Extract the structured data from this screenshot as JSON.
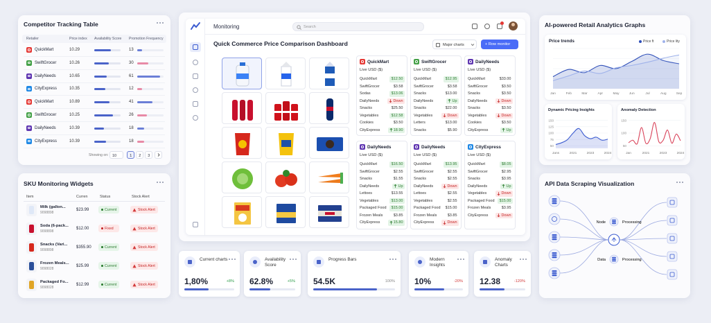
{
  "competitor": {
    "title": "Competitor Tracking Table",
    "columns": [
      "Retailer",
      "Price index",
      "Availability Score",
      "Promotion Frequency"
    ],
    "rows": [
      {
        "retailer": "QuickMart",
        "color": "#e53935",
        "price": "10.29",
        "availability": 62,
        "promo": 13
      },
      {
        "retailer": "SwiftGrocer",
        "color": "#43a047",
        "price": "10.26",
        "availability": 55,
        "promo": 30
      },
      {
        "retailer": "DailyNeeds",
        "color": "#5e35b1",
        "price": "10.65",
        "availability": 48,
        "promo": 61
      },
      {
        "retailer": "CityExpress",
        "color": "#1e88e5",
        "price": "10.35",
        "availability": 42,
        "promo": 12
      },
      {
        "retailer": "QuickMart",
        "color": "#e53935",
        "price": "10.89",
        "availability": 58,
        "promo": 41
      },
      {
        "retailer": "SwiftGrocer",
        "color": "#43a047",
        "price": "10.25",
        "availability": 70,
        "promo": 26
      },
      {
        "retailer": "DailyNeeds",
        "color": "#5e35b1",
        "price": "10.39",
        "availability": 38,
        "promo": 18
      },
      {
        "retailer": "CityExpress",
        "color": "#1e88e5",
        "price": "10.39",
        "availability": 44,
        "promo": 18
      }
    ],
    "showing": "Showing on:",
    "per_page": "10",
    "pages": [
      "1",
      "2",
      "3"
    ]
  },
  "sku": {
    "title": "SKU Monitoring Widgets",
    "columns": [
      "Item",
      "Curren",
      "Status",
      "Stock Alert"
    ],
    "rows": [
      {
        "item": "Milk (gallon...",
        "sku": "9098898",
        "price": "$23.99",
        "status": "Current",
        "tone": "ok",
        "alert": "Stock Alert",
        "thumb": "#dfe8f7"
      },
      {
        "item": "Soda (6-pack...",
        "sku": "9098898",
        "price": "$12.00",
        "status": "Fixed",
        "tone": "bad",
        "alert": "Stock Alert",
        "thumb": "#c8102e"
      },
      {
        "item": "Snacks (Vari...",
        "sku": "9098898",
        "price": "$355.90",
        "status": "Current",
        "tone": "ok",
        "alert": "Stock Alert",
        "thumb": "#d6281c"
      },
      {
        "item": "Frozen Meals...",
        "sku": "9098028",
        "price": "$25.99",
        "status": "Current",
        "tone": "ok",
        "alert": "Stock Alert",
        "thumb": "#2a4f9a"
      },
      {
        "item": "Packaged Fo...",
        "sku": "9098028",
        "price": "$12.99",
        "status": "Current",
        "tone": "ok",
        "alert": "Stock Alert",
        "thumb": "#e0a526"
      }
    ]
  },
  "dashboard": {
    "nav_title": "Monitoring",
    "search": "Search",
    "title": "Quick Commerce Price Comparison Dashboard",
    "dropdown": "Major charts",
    "button": "+ Row monitor",
    "stores": [
      {
        "name": "QuickMart",
        "color": "#e53935",
        "unit": "Live USD ($)",
        "rows": [
          [
            "QuickMart",
            "$12.50",
            "pos"
          ],
          [
            "SwiftGrocer",
            "$3.58",
            "plain"
          ],
          [
            "Sodas",
            "$13.06",
            "pos"
          ],
          [
            "DailyNeeds",
            "Down",
            "down"
          ],
          [
            "Snacks",
            "$25.50",
            "plain"
          ],
          [
            "Vegetables",
            "$12.58",
            "pos"
          ],
          [
            "Cookies",
            "$3.50",
            "plain"
          ],
          [
            "CityExpress",
            "18.90",
            "up"
          ]
        ]
      },
      {
        "name": "SwiftGrocer",
        "color": "#43a047",
        "unit": "Live USD ($)",
        "rows": [
          [
            "QuickMart",
            "$12.95",
            "pos"
          ],
          [
            "SwiftGrocer",
            "$3.58",
            "plain"
          ],
          [
            "Snacks",
            "$13.00",
            "plain"
          ],
          [
            "DailyNeeds",
            "Up",
            "up"
          ],
          [
            "Snacks",
            "$22.00",
            "plain"
          ],
          [
            "Vegetables",
            "Down",
            "down"
          ],
          [
            "Letters",
            "$13.00",
            "plain"
          ],
          [
            "Snacks",
            "$5.90",
            "plain"
          ]
        ]
      },
      {
        "name": "DailyNeeds",
        "color": "#5e35b1",
        "unit": "Live USD ($)",
        "rows": [
          [
            "QuickMart",
            "$33.00",
            "plain"
          ],
          [
            "SwiftGrocer",
            "$3.50",
            "plain"
          ],
          [
            "Snacks",
            "$3.50",
            "plain"
          ],
          [
            "DailyNeeds",
            "Down",
            "down"
          ],
          [
            "Snacks",
            "$3.50",
            "plain"
          ],
          [
            "Vegetables",
            "Down",
            "down"
          ],
          [
            "Cookies",
            "$3.50",
            "plain"
          ],
          [
            "CityExpress",
            "Up",
            "up"
          ]
        ]
      },
      {
        "name": "DailyNeeds",
        "color": "#5e35b1",
        "unit": "Live USD ($)",
        "rows": [
          [
            "QuickMart",
            "$16.50",
            "pos"
          ],
          [
            "SwiftGrocer",
            "$2.55",
            "plain"
          ],
          [
            "Snacks",
            "$1.55",
            "plain"
          ],
          [
            "DailyNeeds",
            "Up",
            "up"
          ],
          [
            "Lettoes",
            "$13.55",
            "plain"
          ],
          [
            "Vegetables",
            "$13.00",
            "pos"
          ],
          [
            "Packaged Food",
            "$15.00",
            "pos"
          ],
          [
            "Frozen Meals",
            "$3.85",
            "plain"
          ],
          [
            "CityExpress",
            "15.80",
            "up"
          ]
        ]
      },
      {
        "name": "DailyNeeds",
        "color": "#5e35b1",
        "unit": "Live USD ($)",
        "rows": [
          [
            "QuickMart",
            "$13.95",
            "pos"
          ],
          [
            "SwiftGrocer",
            "$2.55",
            "plain"
          ],
          [
            "Snacks",
            "$2.55",
            "plain"
          ],
          [
            "DailyNeeds",
            "Down",
            "down"
          ],
          [
            "Lettoes",
            "$2.55",
            "plain"
          ],
          [
            "Vegetables",
            "$2.55",
            "plain"
          ],
          [
            "Packaged Food",
            "$15.00",
            "plain"
          ],
          [
            "Frozen Meals",
            "$3.85",
            "plain"
          ],
          [
            "CityExpress",
            "Down",
            "down"
          ]
        ]
      },
      {
        "name": "CityExpress",
        "color": "#1e88e5",
        "unit": "Live USD ($)",
        "rows": [
          [
            "QuickMart",
            "$8.05",
            "pos"
          ],
          [
            "SwiftGrocer",
            "$2.95",
            "plain"
          ],
          [
            "Snacks",
            "$3.95",
            "plain"
          ],
          [
            "DailyNeeds",
            "Up",
            "up"
          ],
          [
            "Vegetables",
            "Down",
            "down"
          ],
          [
            "Packaged Food",
            "$15.00",
            "pos"
          ],
          [
            "Frozen Meals",
            "$3.95",
            "plain"
          ],
          [
            "CityExpress",
            "Down",
            "down"
          ]
        ]
      }
    ]
  },
  "kpis": [
    {
      "label": "Current charts",
      "value": "1,80%",
      "delta": "+8%",
      "tone": "pos",
      "progress": 48
    },
    {
      "label": "Availability Score",
      "value": "62.8%",
      "delta": "+5%",
      "tone": "pos",
      "progress": 45
    },
    {
      "label": "Progress Bars",
      "value": "54.5K",
      "delta": "100%",
      "tone": "neutral",
      "progress": 78
    },
    {
      "label": "Modern Insights",
      "value": "10%",
      "delta": "-20%",
      "tone": "neg",
      "progress": 62
    },
    {
      "label": "Anomaly Charts",
      "value": "12.38",
      "delta": "-120%",
      "tone": "neg",
      "progress": 55
    }
  ],
  "ai": {
    "title": "AI-powered Retail Analytics Graphs",
    "price_trends": {
      "type": "line",
      "title": "Price trends",
      "categories": [
        "Jan",
        "Feb",
        "Mar",
        "Apr",
        "May",
        "Jun",
        "Jul",
        "Aug",
        "Sep"
      ],
      "ylim": [
        0,
        100
      ],
      "series": [
        {
          "name": "Price ft",
          "color": "#2f4fb8",
          "values": [
            30,
            48,
            40,
            58,
            50,
            68,
            86,
            70,
            62
          ]
        },
        {
          "name": "Price lity",
          "color": "#9fb2ea",
          "values": [
            20,
            32,
            44,
            38,
            52,
            58,
            66,
            76,
            84
          ]
        }
      ]
    },
    "dynamic": {
      "type": "line",
      "title": "Dynamic Pricing Insights",
      "categories": [
        "Jans",
        null,
        null,
        "2021",
        null,
        null,
        "2023",
        null,
        null,
        "2024"
      ],
      "ylim": [
        40,
        160
      ],
      "yticks": [
        50,
        75,
        100,
        125,
        150
      ],
      "color": "#3b5bd0",
      "values": [
        55,
        62,
        74,
        100,
        118,
        90,
        78,
        84,
        72,
        76
      ]
    },
    "anomaly": {
      "type": "line",
      "title": "Anomaly Detection",
      "categories": [
        "Jan",
        null,
        null,
        null,
        "2021",
        null,
        null,
        null,
        "2023",
        null,
        null,
        null,
        "2024"
      ],
      "ylim": [
        40,
        160
      ],
      "yticks": [
        50,
        100,
        150
      ],
      "color": "#d9435a",
      "values": [
        62,
        72,
        58,
        122,
        60,
        78,
        142,
        66,
        72,
        112,
        60,
        96,
        70
      ]
    }
  },
  "api": {
    "title": "API Data Scraping Visualization",
    "node": "Node",
    "processing_1": "Processing",
    "data": "Data",
    "processing_2": "Processing"
  }
}
